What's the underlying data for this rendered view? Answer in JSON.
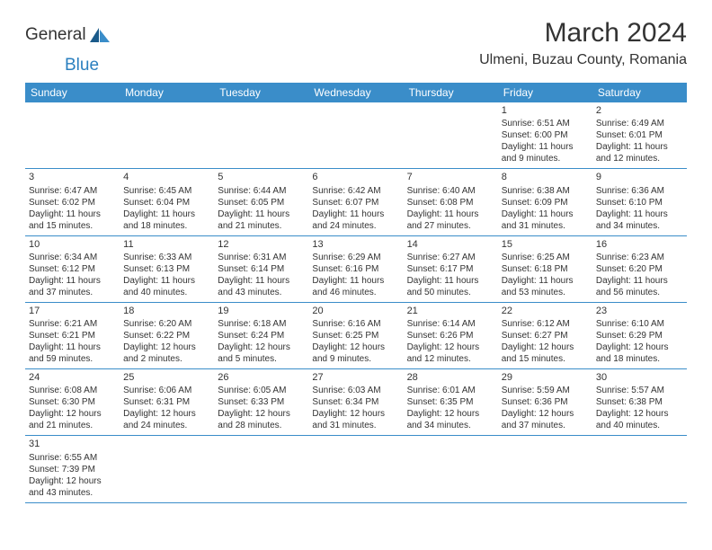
{
  "header": {
    "logo_text1": "General",
    "logo_text2": "Blue",
    "title": "March 2024",
    "location": "Ulmeni, Buzau County, Romania"
  },
  "columns": [
    "Sunday",
    "Monday",
    "Tuesday",
    "Wednesday",
    "Thursday",
    "Friday",
    "Saturday"
  ],
  "days": {
    "1": {
      "n": "1",
      "rise": "Sunrise: 6:51 AM",
      "set": "Sunset: 6:00 PM",
      "d1": "Daylight: 11 hours",
      "d2": "and 9 minutes."
    },
    "2": {
      "n": "2",
      "rise": "Sunrise: 6:49 AM",
      "set": "Sunset: 6:01 PM",
      "d1": "Daylight: 11 hours",
      "d2": "and 12 minutes."
    },
    "3": {
      "n": "3",
      "rise": "Sunrise: 6:47 AM",
      "set": "Sunset: 6:02 PM",
      "d1": "Daylight: 11 hours",
      "d2": "and 15 minutes."
    },
    "4": {
      "n": "4",
      "rise": "Sunrise: 6:45 AM",
      "set": "Sunset: 6:04 PM",
      "d1": "Daylight: 11 hours",
      "d2": "and 18 minutes."
    },
    "5": {
      "n": "5",
      "rise": "Sunrise: 6:44 AM",
      "set": "Sunset: 6:05 PM",
      "d1": "Daylight: 11 hours",
      "d2": "and 21 minutes."
    },
    "6": {
      "n": "6",
      "rise": "Sunrise: 6:42 AM",
      "set": "Sunset: 6:07 PM",
      "d1": "Daylight: 11 hours",
      "d2": "and 24 minutes."
    },
    "7": {
      "n": "7",
      "rise": "Sunrise: 6:40 AM",
      "set": "Sunset: 6:08 PM",
      "d1": "Daylight: 11 hours",
      "d2": "and 27 minutes."
    },
    "8": {
      "n": "8",
      "rise": "Sunrise: 6:38 AM",
      "set": "Sunset: 6:09 PM",
      "d1": "Daylight: 11 hours",
      "d2": "and 31 minutes."
    },
    "9": {
      "n": "9",
      "rise": "Sunrise: 6:36 AM",
      "set": "Sunset: 6:10 PM",
      "d1": "Daylight: 11 hours",
      "d2": "and 34 minutes."
    },
    "10": {
      "n": "10",
      "rise": "Sunrise: 6:34 AM",
      "set": "Sunset: 6:12 PM",
      "d1": "Daylight: 11 hours",
      "d2": "and 37 minutes."
    },
    "11": {
      "n": "11",
      "rise": "Sunrise: 6:33 AM",
      "set": "Sunset: 6:13 PM",
      "d1": "Daylight: 11 hours",
      "d2": "and 40 minutes."
    },
    "12": {
      "n": "12",
      "rise": "Sunrise: 6:31 AM",
      "set": "Sunset: 6:14 PM",
      "d1": "Daylight: 11 hours",
      "d2": "and 43 minutes."
    },
    "13": {
      "n": "13",
      "rise": "Sunrise: 6:29 AM",
      "set": "Sunset: 6:16 PM",
      "d1": "Daylight: 11 hours",
      "d2": "and 46 minutes."
    },
    "14": {
      "n": "14",
      "rise": "Sunrise: 6:27 AM",
      "set": "Sunset: 6:17 PM",
      "d1": "Daylight: 11 hours",
      "d2": "and 50 minutes."
    },
    "15": {
      "n": "15",
      "rise": "Sunrise: 6:25 AM",
      "set": "Sunset: 6:18 PM",
      "d1": "Daylight: 11 hours",
      "d2": "and 53 minutes."
    },
    "16": {
      "n": "16",
      "rise": "Sunrise: 6:23 AM",
      "set": "Sunset: 6:20 PM",
      "d1": "Daylight: 11 hours",
      "d2": "and 56 minutes."
    },
    "17": {
      "n": "17",
      "rise": "Sunrise: 6:21 AM",
      "set": "Sunset: 6:21 PM",
      "d1": "Daylight: 11 hours",
      "d2": "and 59 minutes."
    },
    "18": {
      "n": "18",
      "rise": "Sunrise: 6:20 AM",
      "set": "Sunset: 6:22 PM",
      "d1": "Daylight: 12 hours",
      "d2": "and 2 minutes."
    },
    "19": {
      "n": "19",
      "rise": "Sunrise: 6:18 AM",
      "set": "Sunset: 6:24 PM",
      "d1": "Daylight: 12 hours",
      "d2": "and 5 minutes."
    },
    "20": {
      "n": "20",
      "rise": "Sunrise: 6:16 AM",
      "set": "Sunset: 6:25 PM",
      "d1": "Daylight: 12 hours",
      "d2": "and 9 minutes."
    },
    "21": {
      "n": "21",
      "rise": "Sunrise: 6:14 AM",
      "set": "Sunset: 6:26 PM",
      "d1": "Daylight: 12 hours",
      "d2": "and 12 minutes."
    },
    "22": {
      "n": "22",
      "rise": "Sunrise: 6:12 AM",
      "set": "Sunset: 6:27 PM",
      "d1": "Daylight: 12 hours",
      "d2": "and 15 minutes."
    },
    "23": {
      "n": "23",
      "rise": "Sunrise: 6:10 AM",
      "set": "Sunset: 6:29 PM",
      "d1": "Daylight: 12 hours",
      "d2": "and 18 minutes."
    },
    "24": {
      "n": "24",
      "rise": "Sunrise: 6:08 AM",
      "set": "Sunset: 6:30 PM",
      "d1": "Daylight: 12 hours",
      "d2": "and 21 minutes."
    },
    "25": {
      "n": "25",
      "rise": "Sunrise: 6:06 AM",
      "set": "Sunset: 6:31 PM",
      "d1": "Daylight: 12 hours",
      "d2": "and 24 minutes."
    },
    "26": {
      "n": "26",
      "rise": "Sunrise: 6:05 AM",
      "set": "Sunset: 6:33 PM",
      "d1": "Daylight: 12 hours",
      "d2": "and 28 minutes."
    },
    "27": {
      "n": "27",
      "rise": "Sunrise: 6:03 AM",
      "set": "Sunset: 6:34 PM",
      "d1": "Daylight: 12 hours",
      "d2": "and 31 minutes."
    },
    "28": {
      "n": "28",
      "rise": "Sunrise: 6:01 AM",
      "set": "Sunset: 6:35 PM",
      "d1": "Daylight: 12 hours",
      "d2": "and 34 minutes."
    },
    "29": {
      "n": "29",
      "rise": "Sunrise: 5:59 AM",
      "set": "Sunset: 6:36 PM",
      "d1": "Daylight: 12 hours",
      "d2": "and 37 minutes."
    },
    "30": {
      "n": "30",
      "rise": "Sunrise: 5:57 AM",
      "set": "Sunset: 6:38 PM",
      "d1": "Daylight: 12 hours",
      "d2": "and 40 minutes."
    },
    "31": {
      "n": "31",
      "rise": "Sunrise: 6:55 AM",
      "set": "Sunset: 7:39 PM",
      "d1": "Daylight: 12 hours",
      "d2": "and 43 minutes."
    }
  },
  "layout": [
    [
      null,
      null,
      null,
      null,
      null,
      "1",
      "2"
    ],
    [
      "3",
      "4",
      "5",
      "6",
      "7",
      "8",
      "9"
    ],
    [
      "10",
      "11",
      "12",
      "13",
      "14",
      "15",
      "16"
    ],
    [
      "17",
      "18",
      "19",
      "20",
      "21",
      "22",
      "23"
    ],
    [
      "24",
      "25",
      "26",
      "27",
      "28",
      "29",
      "30"
    ],
    [
      "31",
      null,
      null,
      null,
      null,
      null,
      null
    ]
  ],
  "colors": {
    "head_bg": "#3a8dc9",
    "head_fg": "#ffffff",
    "border": "#3a8dc9",
    "text": "#333333"
  }
}
